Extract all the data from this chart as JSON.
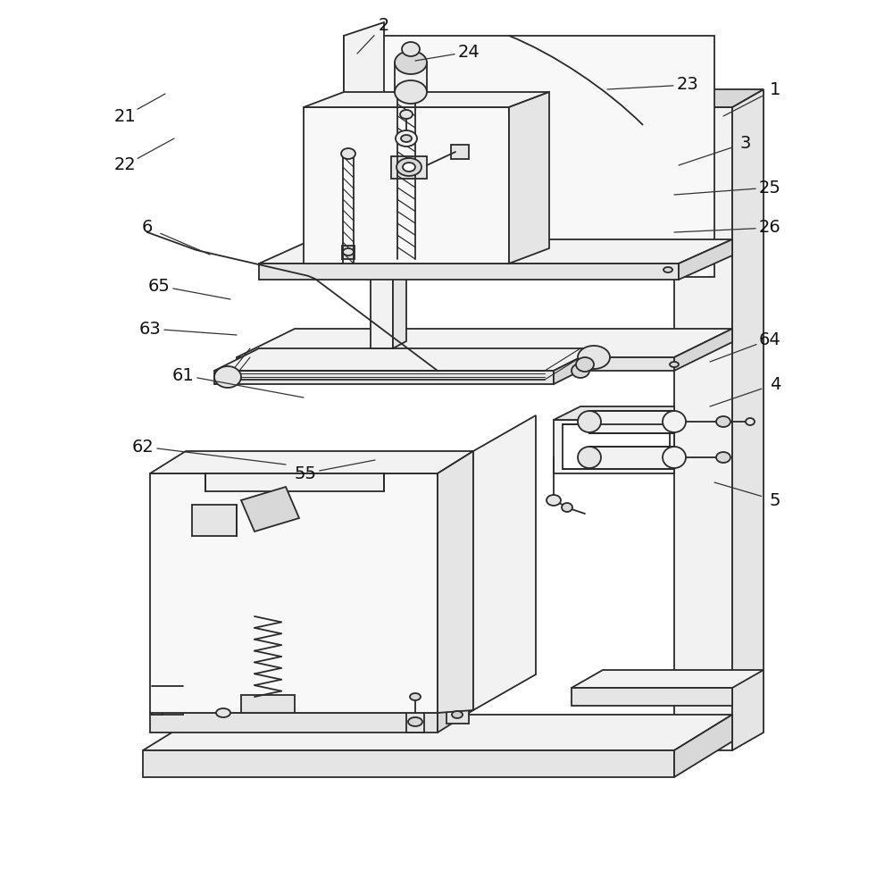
{
  "bg": "#ffffff",
  "lc": "#2a2a2a",
  "lw": 1.3,
  "fill_light": "#f2f2f2",
  "fill_mid": "#e5e5e5",
  "fill_dark": "#d8d8d8",
  "fill_vlight": "#f8f8f8",
  "label_fs": 14,
  "labels": [
    [
      "1",
      868,
      100,
      810,
      130
    ],
    [
      "2",
      430,
      28,
      400,
      60
    ],
    [
      "3",
      835,
      160,
      760,
      185
    ],
    [
      "4",
      868,
      430,
      795,
      455
    ],
    [
      "5",
      868,
      560,
      800,
      540
    ],
    [
      "6",
      165,
      255,
      235,
      285
    ],
    [
      "21",
      140,
      130,
      185,
      105
    ],
    [
      "22",
      140,
      185,
      195,
      155
    ],
    [
      "23",
      770,
      95,
      680,
      100
    ],
    [
      "24",
      525,
      58,
      465,
      68
    ],
    [
      "25",
      862,
      210,
      755,
      218
    ],
    [
      "26",
      862,
      255,
      755,
      260
    ],
    [
      "55",
      342,
      530,
      420,
      515
    ],
    [
      "61",
      205,
      420,
      340,
      445
    ],
    [
      "62",
      160,
      500,
      320,
      520
    ],
    [
      "63",
      168,
      368,
      265,
      375
    ],
    [
      "64",
      862,
      380,
      795,
      405
    ],
    [
      "65",
      178,
      320,
      258,
      335
    ]
  ]
}
